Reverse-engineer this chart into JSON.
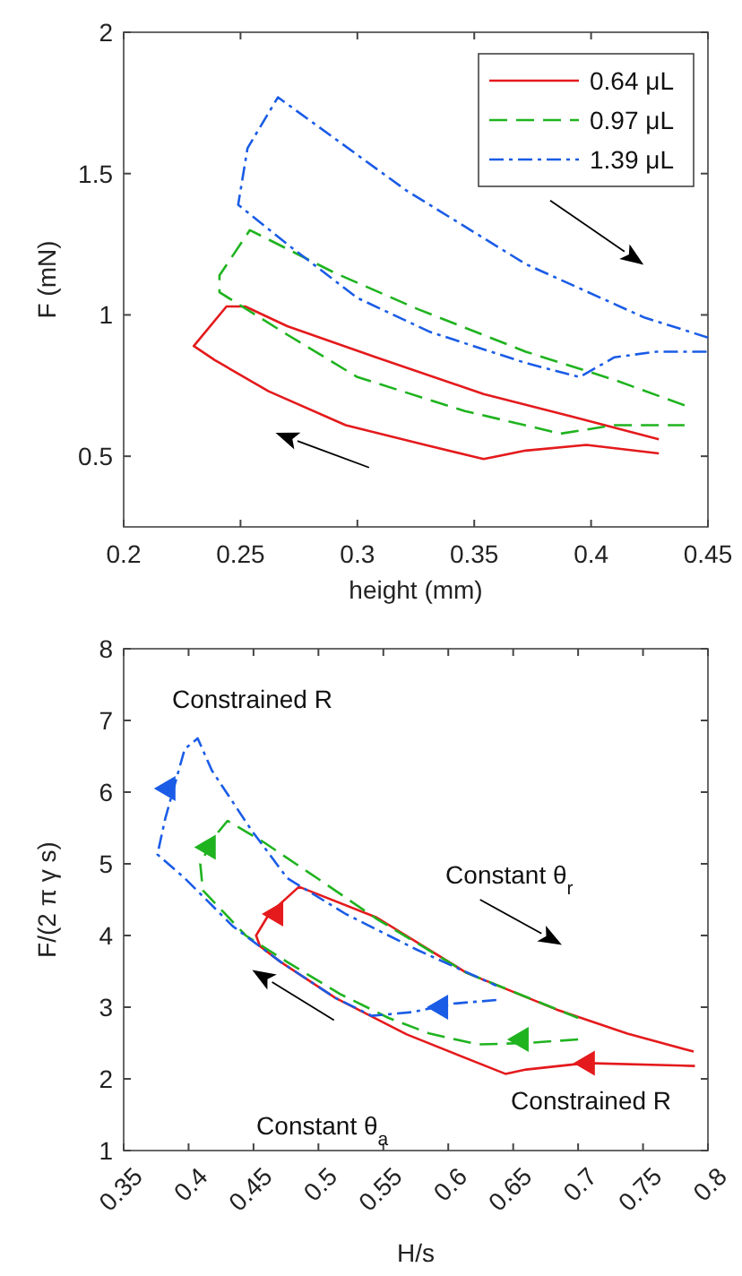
{
  "chart_data": [
    {
      "type": "line",
      "xlabel": "height (mm)",
      "ylabel": "F (mN)",
      "xlim": [
        0.2,
        0.45
      ],
      "xticks": [
        0.2,
        0.25,
        0.3,
        0.35,
        0.4,
        0.45
      ],
      "ylim": [
        0.25,
        2
      ],
      "yticks": [
        0.5,
        1,
        1.5,
        2
      ],
      "legend": "top right",
      "grid": false,
      "series": [
        {
          "name": "0.64 μL",
          "color": "#e41a1c",
          "line_style": "solid",
          "x": [
            0.429,
            0.392,
            0.354,
            0.308,
            0.27,
            0.252,
            0.244,
            0.23,
            0.239,
            0.262,
            0.295,
            0.329,
            0.354,
            0.372,
            0.398,
            0.429
          ],
          "values": [
            0.56,
            0.64,
            0.72,
            0.85,
            0.96,
            1.03,
            1.03,
            0.89,
            0.84,
            0.73,
            0.61,
            0.54,
            0.49,
            0.52,
            0.54,
            0.51
          ]
        },
        {
          "name": "0.97 μL",
          "color": "#1fb31f",
          "line_style": "dashed",
          "x": [
            0.44,
            0.41,
            0.372,
            0.326,
            0.29,
            0.254,
            0.241,
            0.241,
            0.27,
            0.3,
            0.346,
            0.387,
            0.41,
            0.44
          ],
          "values": [
            0.68,
            0.77,
            0.87,
            1.02,
            1.15,
            1.3,
            1.14,
            1.08,
            0.93,
            0.78,
            0.66,
            0.58,
            0.61,
            0.61
          ]
        },
        {
          "name": "1.39 μL",
          "color": "#1a5ce6",
          "line_style": "dashdot",
          "x": [
            0.45,
            0.423,
            0.372,
            0.321,
            0.266,
            0.253,
            0.249,
            0.27,
            0.3,
            0.331,
            0.372,
            0.395,
            0.41,
            0.428,
            0.45
          ],
          "values": [
            0.92,
            0.99,
            1.18,
            1.44,
            1.77,
            1.59,
            1.39,
            1.25,
            1.06,
            0.94,
            0.83,
            0.78,
            0.85,
            0.87,
            0.87
          ]
        }
      ]
    },
    {
      "type": "line",
      "xlabel": "H/s",
      "ylabel": "F/(2 π γ s)",
      "xlim": [
        0.35,
        0.8
      ],
      "xticks": [
        0.35,
        0.4,
        0.45,
        0.5,
        0.55,
        0.6,
        0.65,
        0.7,
        0.75,
        0.8
      ],
      "ylim": [
        1,
        8
      ],
      "yticks": [
        1,
        2,
        3,
        4,
        5,
        6,
        7,
        8
      ],
      "legend": false,
      "grid": false,
      "annotations": [
        "Constrained R",
        "Constant θ$_{r}$",
        "Constant θ$_{a}$",
        "Constrained R"
      ],
      "series": [
        {
          "color": "#e41a1c",
          "line_style": "solid",
          "x": [
            0.79,
            0.706,
            0.66,
            0.644,
            0.568,
            0.513,
            0.471,
            0.455,
            0.452,
            0.462,
            0.485,
            0.545,
            0.614,
            0.683,
            0.738,
            0.789
          ],
          "values": [
            2.18,
            2.22,
            2.13,
            2.07,
            2.62,
            3.13,
            3.63,
            3.85,
            4.0,
            4.3,
            4.68,
            4.25,
            3.48,
            2.97,
            2.63,
            2.38
          ]
        },
        {
          "color": "#1fb31f",
          "line_style": "dashed",
          "x": [
            0.7,
            0.66,
            0.623,
            0.586,
            0.554,
            0.517,
            0.476,
            0.444,
            0.411,
            0.409,
            0.42,
            0.43,
            0.458,
            0.499,
            0.545,
            0.614,
            0.7
          ],
          "values": [
            2.55,
            2.5,
            2.48,
            2.63,
            2.85,
            3.18,
            3.63,
            4.0,
            4.63,
            5.0,
            5.38,
            5.6,
            5.3,
            4.8,
            4.23,
            3.48,
            2.85
          ]
        },
        {
          "color": "#1a5ce6",
          "line_style": "dashdot",
          "x": [
            0.637,
            0.604,
            0.572,
            0.541,
            0.513,
            0.471,
            0.434,
            0.397,
            0.376,
            0.382,
            0.397,
            0.407,
            0.418,
            0.448,
            0.476,
            0.521,
            0.576,
            0.637
          ],
          "values": [
            3.1,
            3.05,
            2.93,
            2.88,
            3.13,
            3.63,
            4.13,
            4.8,
            5.13,
            5.63,
            6.6,
            6.75,
            6.3,
            5.48,
            4.8,
            4.3,
            3.8,
            3.3
          ]
        },
        {
          "type": "scatter",
          "marker": "triangle",
          "color": "#e41a1c",
          "x": [
            0.466,
            0.706
          ],
          "values": [
            4.3,
            2.22
          ]
        },
        {
          "type": "scatter",
          "marker": "triangle",
          "color": "#1fb31f",
          "x": [
            0.414,
            0.655
          ],
          "values": [
            5.23,
            2.55
          ]
        },
        {
          "type": "scatter",
          "marker": "triangle",
          "color": "#1a5ce6",
          "x": [
            0.383,
            0.593
          ],
          "values": [
            6.05,
            3.0
          ]
        }
      ]
    }
  ]
}
